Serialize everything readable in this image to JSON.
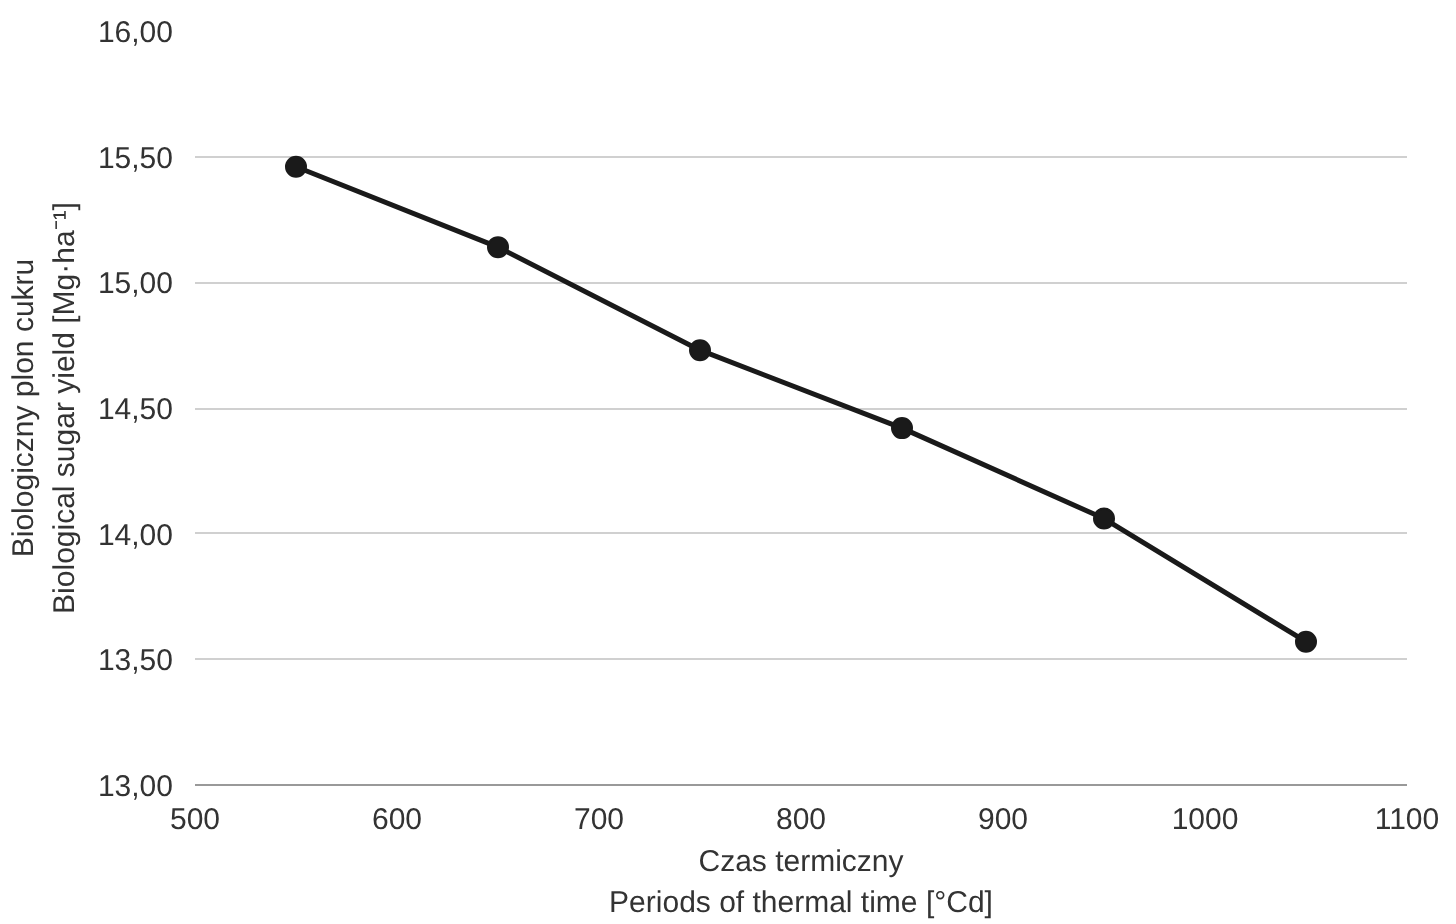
{
  "chart_data": {
    "type": "line",
    "xlabel": "Czas termiczny\nPeriods of thermal time [°Cd]",
    "ylabel": "Biologiczny plon cukru\nBiological sugar yield [Mg·ha⁻¹]",
    "x": [
      550,
      650,
      750,
      850,
      950,
      1050
    ],
    "series": [
      {
        "color": "#1a1a1a",
        "values": [
          15.46,
          15.14,
          14.73,
          14.42,
          14.06,
          13.57
        ]
      }
    ],
    "xlim": [
      500,
      1100
    ],
    "xticks": [
      500,
      600,
      700,
      800,
      900,
      1000,
      1100
    ],
    "ylim": [
      13,
      16
    ],
    "yticks": [
      {
        "value": 13,
        "label": "13,00"
      },
      {
        "value": 13.5,
        "label": "13,50"
      },
      {
        "value": 14,
        "label": "14,00"
      },
      {
        "value": 14.5,
        "label": "14,50"
      },
      {
        "value": 15,
        "label": "15,00"
      },
      {
        "value": 15.5,
        "label": "15,50"
      },
      {
        "value": 16,
        "label": "16,00"
      }
    ],
    "grid": "y",
    "marker": "circle",
    "line_style": "solid"
  }
}
